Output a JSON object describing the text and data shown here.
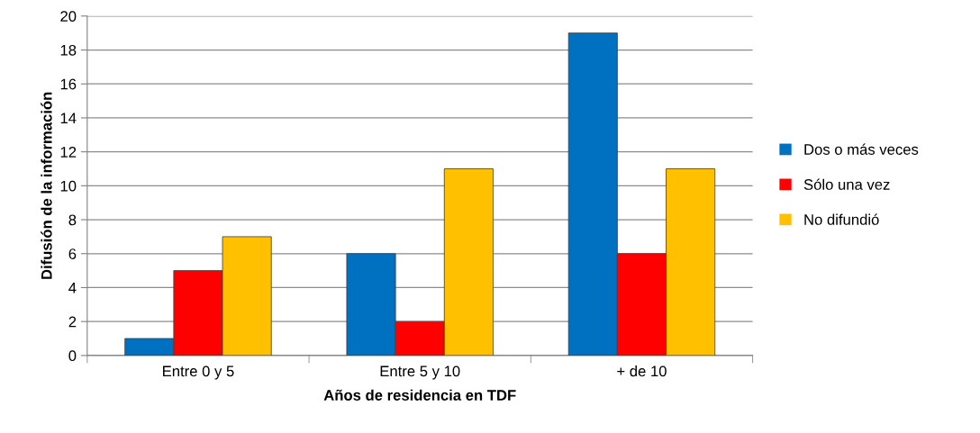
{
  "chart_data": {
    "type": "bar",
    "xlabel": "Años de residencia en TDF",
    "ylabel": "Difusión de la información",
    "categories": [
      "Entre 0 y 5",
      "Entre 5 y 10",
      "+ de 10"
    ],
    "series": [
      {
        "name": "Dos o más veces",
        "color": "#0070c0",
        "values": [
          1,
          6,
          19
        ]
      },
      {
        "name": "Sólo una vez",
        "color": "#ff0000",
        "values": [
          5,
          2,
          6
        ]
      },
      {
        "name": "No difundió",
        "color": "#ffc000",
        "values": [
          7,
          11,
          11
        ]
      }
    ],
    "ylim": [
      0,
      20
    ],
    "yticks": [
      0,
      2,
      4,
      6,
      8,
      10,
      12,
      14,
      16,
      18,
      20
    ],
    "grid": "y",
    "legend": "right"
  }
}
